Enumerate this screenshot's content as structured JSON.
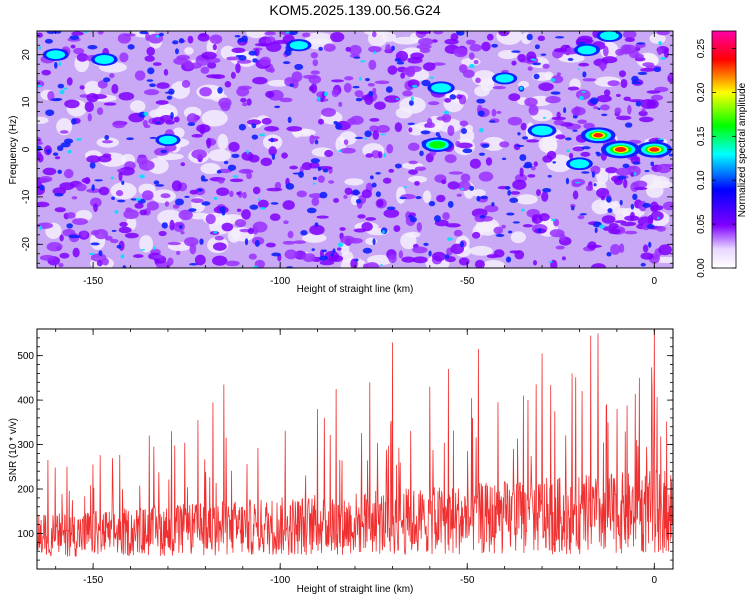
{
  "title": "KOM5.2025.139.00.56.G24",
  "chart_data": [
    {
      "type": "heatmap",
      "xlabel": "Height of straight line (km)",
      "ylabel": "Frequency (Hz)",
      "xlim": [
        -165,
        5
      ],
      "ylim": [
        -25,
        25
      ],
      "xticks": [
        -150,
        -100,
        -50,
        0
      ],
      "yticks": [
        -20,
        -10,
        0,
        10,
        20
      ],
      "colorbar": {
        "label": "Normalized spectral amplitude",
        "range": [
          0,
          0.27
        ],
        "ticks": [
          0,
          0.05,
          0.1,
          0.15,
          0.2,
          0.25
        ],
        "tick_labels": [
          "0.00",
          "0.05",
          "0.10",
          "0.15",
          "0.20",
          "0.25"
        ],
        "colormap": [
          "#ffffff",
          "#7f00ff",
          "#0000ff",
          "#00ffff",
          "#00ff00",
          "#ffff00",
          "#ff0000",
          "#ff00aa"
        ]
      },
      "hotspots": [
        {
          "x": -9,
          "y": 0,
          "value": 0.26
        },
        {
          "x": 0,
          "y": 0,
          "value": 0.21
        },
        {
          "x": -15,
          "y": 3,
          "value": 0.2
        },
        {
          "x": -58,
          "y": 1,
          "value": 0.15
        },
        {
          "x": -30,
          "y": 4,
          "value": 0.12
        },
        {
          "x": -57,
          "y": 13,
          "value": 0.1
        },
        {
          "x": -147,
          "y": 19,
          "value": 0.09
        },
        {
          "x": -130,
          "y": 2,
          "value": 0.07
        },
        {
          "x": -18,
          "y": 21,
          "value": 0.08
        },
        {
          "x": -12,
          "y": 24,
          "value": 0.08
        },
        {
          "x": -20,
          "y": -3,
          "value": 0.09
        },
        {
          "x": -95,
          "y": 22,
          "value": 0.07
        },
        {
          "x": -160,
          "y": 20,
          "value": 0.08
        },
        {
          "x": -40,
          "y": 15,
          "value": 0.07
        }
      ],
      "background_level": 0.04
    },
    {
      "type": "line",
      "xlabel": "Height of straight line (km)",
      "ylabel": "SNR (10 * v/v)",
      "xlim": [
        -165,
        5
      ],
      "ylim": [
        20,
        560
      ],
      "xticks": [
        -150,
        -100,
        -50,
        0
      ],
      "yticks": [
        100,
        200,
        300,
        400,
        500
      ],
      "series": [
        {
          "color": "#f03030",
          "x_start": -165,
          "x_end": 5,
          "baseline_start": 95,
          "baseline_end": 150,
          "peaks": [
            {
              "x": 0,
              "y": 560
            },
            {
              "x": -15,
              "y": 550
            },
            {
              "x": -17,
              "y": 545
            },
            {
              "x": -70,
              "y": 530
            },
            {
              "x": -47,
              "y": 515
            },
            {
              "x": -30,
              "y": 505
            },
            {
              "x": -55,
              "y": 470
            },
            {
              "x": -22,
              "y": 460
            },
            {
              "x": -60,
              "y": 430
            },
            {
              "x": -85,
              "y": 425
            },
            {
              "x": -115,
              "y": 435
            },
            {
              "x": -76,
              "y": 440
            },
            {
              "x": -4,
              "y": 450
            },
            {
              "x": -35,
              "y": 410
            },
            {
              "x": -118,
              "y": 395
            },
            {
              "x": -90,
              "y": 380
            },
            {
              "x": -10,
              "y": 380
            },
            {
              "x": -122,
              "y": 355
            },
            {
              "x": -129,
              "y": 330
            },
            {
              "x": -135,
              "y": 320
            },
            {
              "x": -150,
              "y": 255
            },
            {
              "x": -157,
              "y": 250
            }
          ]
        }
      ]
    }
  ]
}
